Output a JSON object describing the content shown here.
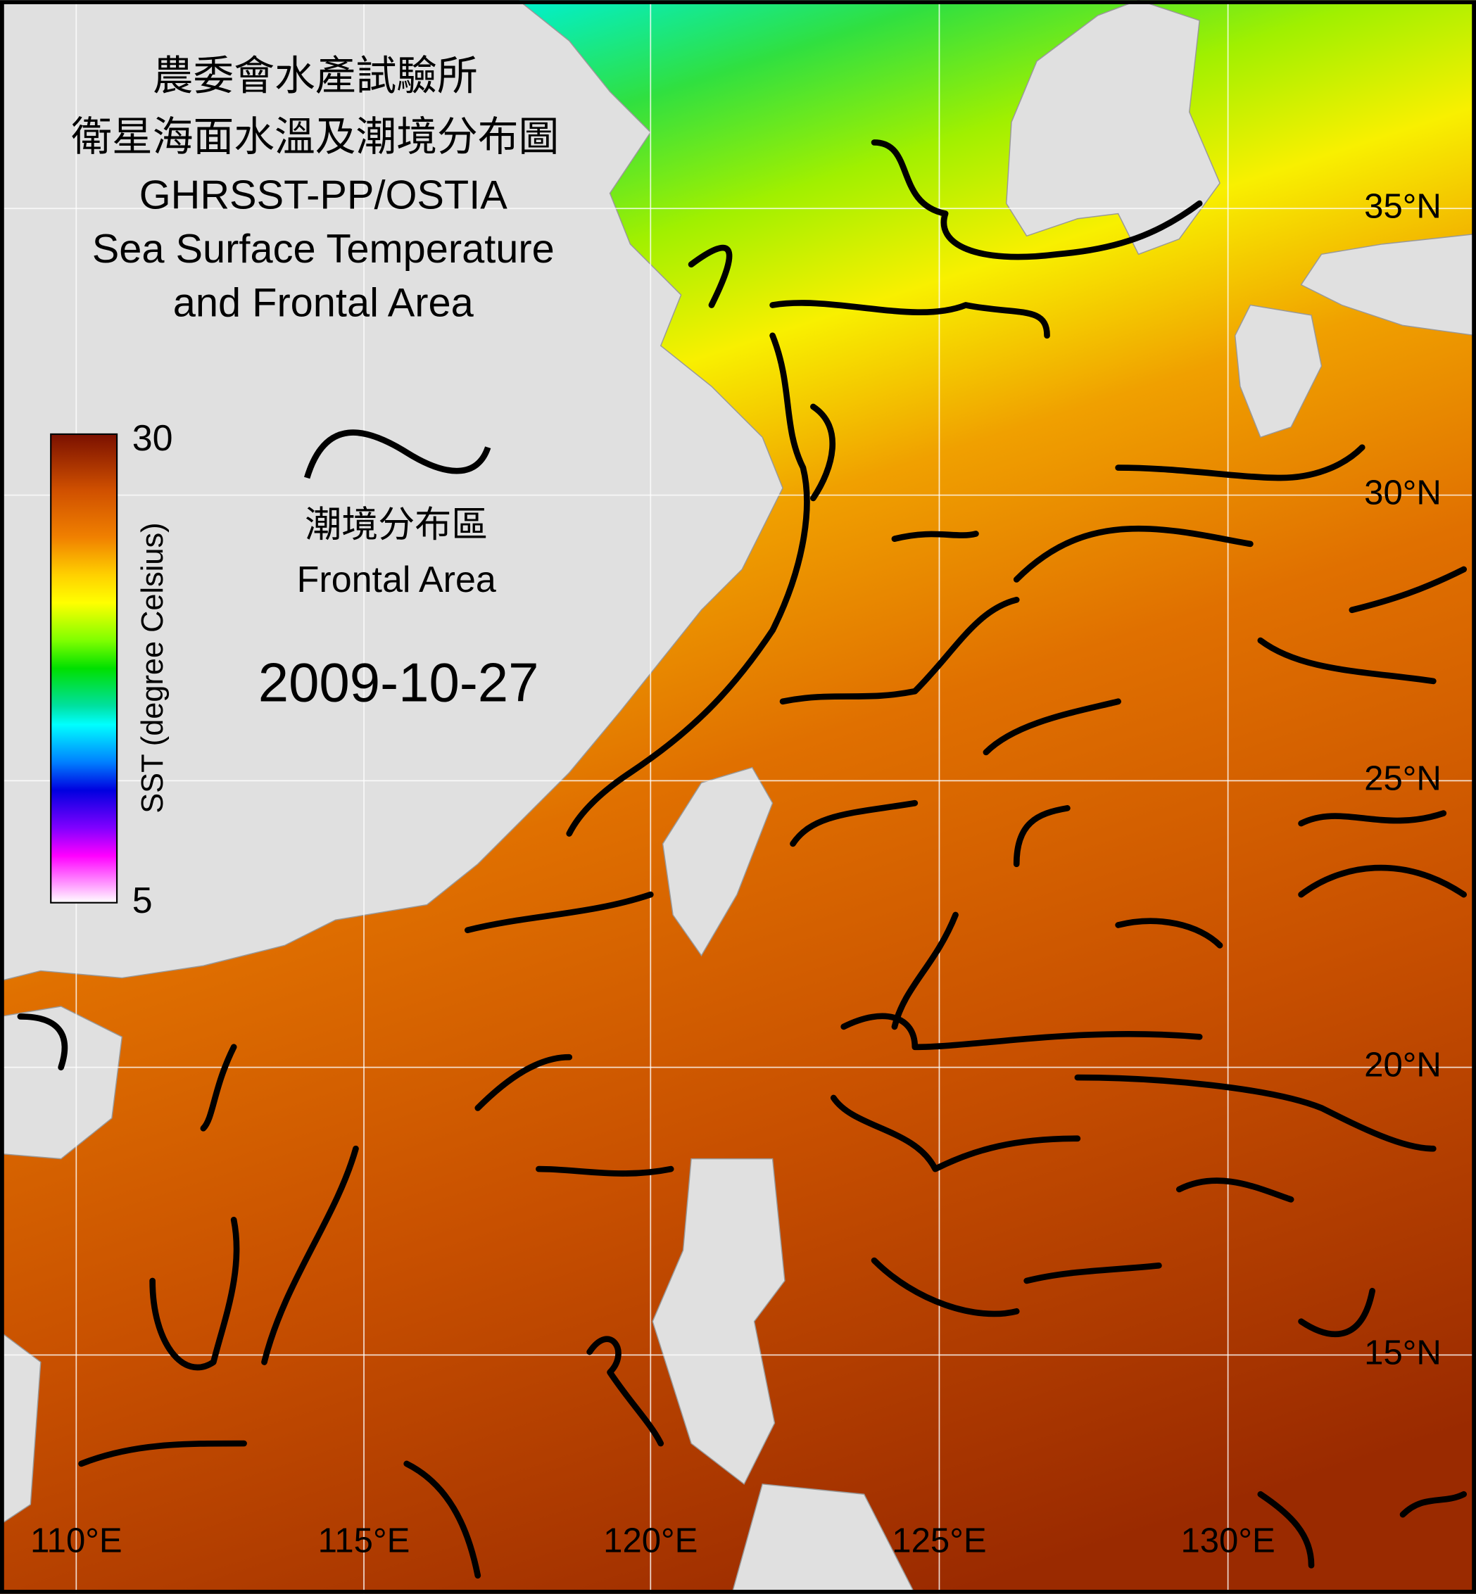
{
  "title": [
    "農委會水產試驗所",
    "衛星海面水溫及潮境分布圖",
    "GHRSST-PP/OSTIA",
    "Sea Surface Temperature",
    "and Frontal Area"
  ],
  "colorbar": {
    "max": 30,
    "min": 5,
    "label": "SST (degree Celsius)"
  },
  "legend": {
    "label_zh": "潮境分布區",
    "label_en": "Frontal Area"
  },
  "date": "2009-10-27",
  "latitude_labels": [
    "35°N",
    "30°N",
    "25°N",
    "20°N",
    "15°N"
  ],
  "longitude_labels": [
    "110°E",
    "115°E",
    "120°E",
    "125°E",
    "130°E"
  ]
}
